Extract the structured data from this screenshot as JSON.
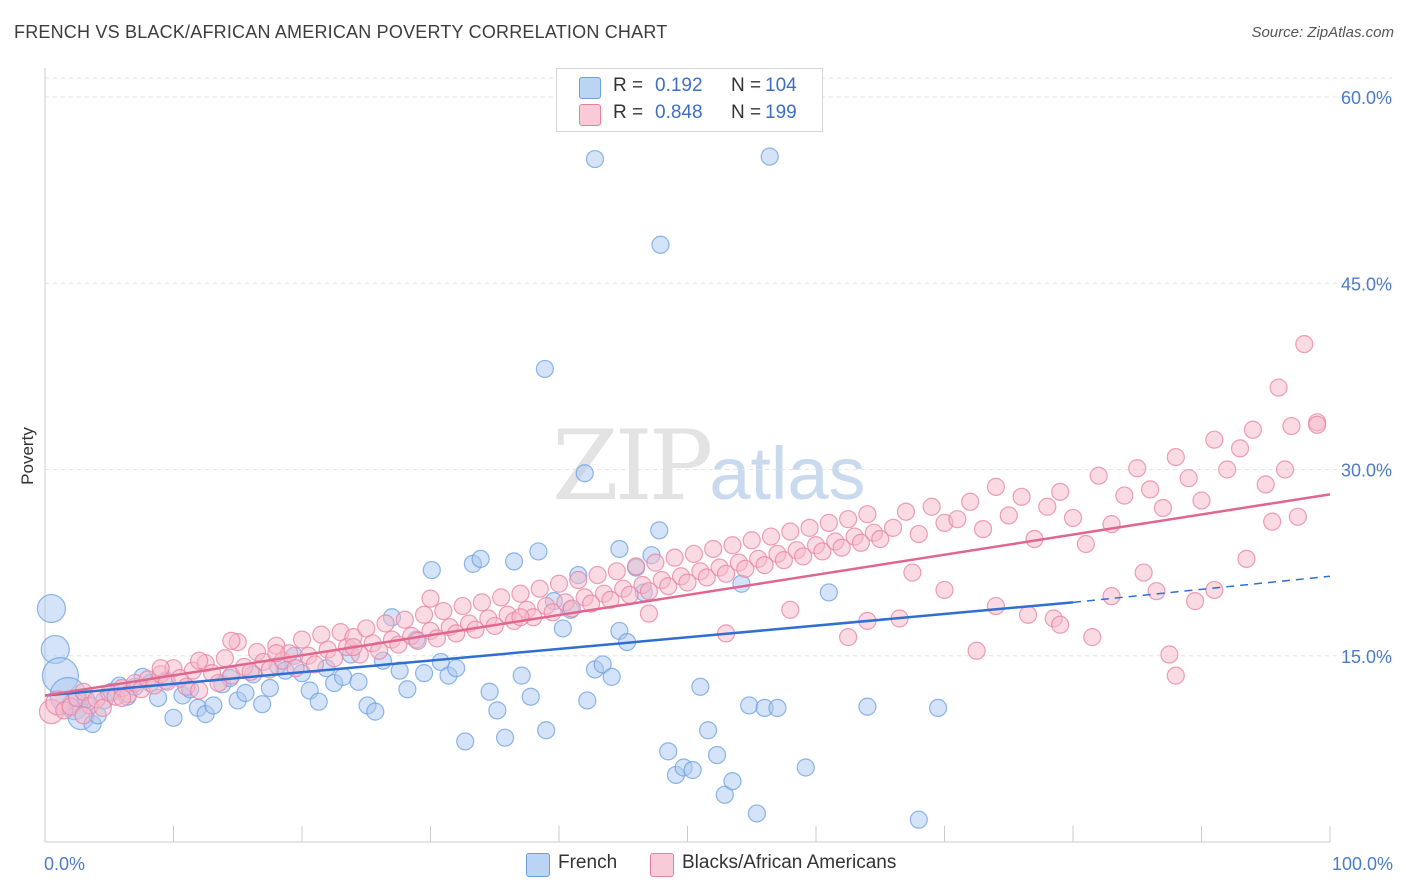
{
  "title": "FRENCH VS BLACK/AFRICAN AMERICAN POVERTY CORRELATION CHART",
  "source": "Source: ZipAtlas.com",
  "watermark": {
    "zip": "ZIP",
    "atlas": "atlas"
  },
  "legend": {
    "rows": [
      {
        "r_label": "R =",
        "r_value": "0.192",
        "n_label": "N =",
        "n_value": "104",
        "color": "#a9c8f0"
      },
      {
        "r_label": "R =",
        "r_value": "0.848",
        "n_label": "N =",
        "n_value": "199",
        "color": "#f6b8ca"
      }
    ]
  },
  "bottom_legend": [
    {
      "label": "French",
      "color": "#a9c8f0"
    },
    {
      "label": "Blacks/African Americans",
      "color": "#f6b8ca"
    }
  ],
  "chart_data": {
    "type": "scatter",
    "title": "FRENCH VS BLACK/AFRICAN AMERICAN POVERTY CORRELATION CHART",
    "xlabel": "",
    "ylabel": "Poverty",
    "xlim": [
      0,
      100
    ],
    "ylim": [
      0,
      60
    ],
    "x_tick_labels": [
      "0.0%",
      "100.0%"
    ],
    "y_ticks": [
      15,
      30,
      45,
      60
    ],
    "y_tick_labels": [
      "15.0%",
      "30.0%",
      "45.0%",
      "60.0%"
    ],
    "grid": true,
    "legend_position": "top-center",
    "series": [
      {
        "name": "French",
        "color": "#6a9fe0",
        "fill": "#a9c8f0",
        "trend": {
          "x": [
            0,
            80
          ],
          "y": [
            11.8,
            19.3
          ],
          "dashed_to": [
            100,
            21.4
          ]
        },
        "points": [
          [
            0.5,
            18.8
          ],
          [
            0.8,
            15.5
          ],
          [
            1.2,
            13.4
          ],
          [
            1.8,
            11.8
          ],
          [
            2.3,
            10.9
          ],
          [
            2.8,
            10.1
          ],
          [
            3.2,
            11.5
          ],
          [
            3.7,
            9.5
          ],
          [
            4.1,
            10.2
          ],
          [
            4.6,
            11.4
          ],
          [
            5.2,
            12.1
          ],
          [
            5.8,
            12.6
          ],
          [
            6.4,
            11.7
          ],
          [
            7.0,
            12.5
          ],
          [
            7.6,
            13.3
          ],
          [
            8.2,
            12.8
          ],
          [
            8.8,
            11.6
          ],
          [
            9.4,
            13.0
          ],
          [
            10.0,
            10.0
          ],
          [
            10.7,
            11.8
          ],
          [
            11.3,
            12.3
          ],
          [
            11.9,
            10.8
          ],
          [
            12.5,
            10.3
          ],
          [
            13.1,
            11.0
          ],
          [
            13.8,
            12.7
          ],
          [
            14.4,
            13.2
          ],
          [
            15.0,
            11.4
          ],
          [
            15.6,
            12.0
          ],
          [
            16.2,
            13.5
          ],
          [
            16.9,
            11.1
          ],
          [
            17.5,
            12.4
          ],
          [
            18.1,
            14.2
          ],
          [
            18.7,
            13.8
          ],
          [
            19.4,
            15.0
          ],
          [
            20.0,
            13.6
          ],
          [
            20.6,
            12.2
          ],
          [
            21.3,
            11.3
          ],
          [
            21.9,
            14.0
          ],
          [
            22.5,
            12.8
          ],
          [
            23.2,
            13.3
          ],
          [
            23.8,
            15.1
          ],
          [
            24.4,
            12.9
          ],
          [
            25.1,
            11.0
          ],
          [
            25.7,
            10.5
          ],
          [
            26.3,
            14.6
          ],
          [
            27.0,
            18.1
          ],
          [
            27.6,
            13.8
          ],
          [
            28.2,
            12.3
          ],
          [
            28.9,
            16.3
          ],
          [
            29.5,
            13.6
          ],
          [
            30.1,
            21.9
          ],
          [
            30.8,
            14.5
          ],
          [
            31.4,
            13.4
          ],
          [
            32.0,
            14.0
          ],
          [
            32.7,
            8.1
          ],
          [
            33.3,
            22.4
          ],
          [
            33.9,
            22.8
          ],
          [
            34.6,
            12.1
          ],
          [
            35.2,
            10.6
          ],
          [
            35.8,
            8.4
          ],
          [
            36.5,
            22.6
          ],
          [
            37.1,
            13.4
          ],
          [
            37.8,
            11.7
          ],
          [
            38.4,
            23.4
          ],
          [
            39.0,
            9.0
          ],
          [
            39.6,
            19.4
          ],
          [
            40.3,
            17.2
          ],
          [
            40.9,
            18.7
          ],
          [
            41.5,
            21.5
          ],
          [
            42.2,
            11.4
          ],
          [
            42.8,
            13.9
          ],
          [
            43.4,
            14.3
          ],
          [
            44.1,
            13.3
          ],
          [
            44.7,
            17.0
          ],
          [
            45.3,
            16.1
          ],
          [
            46.0,
            22.1
          ],
          [
            46.6,
            20.1
          ],
          [
            47.2,
            23.1
          ],
          [
            47.8,
            25.1
          ],
          [
            48.5,
            7.3
          ],
          [
            49.1,
            5.4
          ],
          [
            49.7,
            6.0
          ],
          [
            50.4,
            5.8
          ],
          [
            51.0,
            12.5
          ],
          [
            51.6,
            9.0
          ],
          [
            52.3,
            7.0
          ],
          [
            52.9,
            3.8
          ],
          [
            53.5,
            4.9
          ],
          [
            54.2,
            20.8
          ],
          [
            54.8,
            11.0
          ],
          [
            55.4,
            2.3
          ],
          [
            56.0,
            10.8
          ],
          [
            57.0,
            10.8
          ],
          [
            59.2,
            6.0
          ],
          [
            61.0,
            20.1
          ],
          [
            64.0,
            10.9
          ],
          [
            68.0,
            1.8
          ],
          [
            69.5,
            10.8
          ],
          [
            38.9,
            38.1
          ],
          [
            42.8,
            55.0
          ],
          [
            56.4,
            55.2
          ],
          [
            47.9,
            48.1
          ],
          [
            42.0,
            29.7
          ],
          [
            44.7,
            23.6
          ]
        ]
      },
      {
        "name": "Blacks/African Americans",
        "color": "#e87fa0",
        "fill": "#f6b8ca",
        "trend": {
          "x": [
            0,
            100
          ],
          "y": [
            11.8,
            28.0
          ]
        },
        "points": [
          [
            0.5,
            10.5
          ],
          [
            1.0,
            11.2
          ],
          [
            1.5,
            10.6
          ],
          [
            2.0,
            10.9
          ],
          [
            2.5,
            11.6
          ],
          [
            3.0,
            12.1
          ],
          [
            3.5,
            11.0
          ],
          [
            4.0,
            11.5
          ],
          [
            4.5,
            10.8
          ],
          [
            5.0,
            12.0
          ],
          [
            5.5,
            11.7
          ],
          [
            6.0,
            12.4
          ],
          [
            6.5,
            11.9
          ],
          [
            7.0,
            12.8
          ],
          [
            7.5,
            12.3
          ],
          [
            8.0,
            13.1
          ],
          [
            8.5,
            12.6
          ],
          [
            9.0,
            13.5
          ],
          [
            9.5,
            12.9
          ],
          [
            10.0,
            14.0
          ],
          [
            10.5,
            13.2
          ],
          [
            11.0,
            12.5
          ],
          [
            11.5,
            13.8
          ],
          [
            12.0,
            12.2
          ],
          [
            12.5,
            14.4
          ],
          [
            13.0,
            13.6
          ],
          [
            13.5,
            12.8
          ],
          [
            14.0,
            14.8
          ],
          [
            14.5,
            13.4
          ],
          [
            15.0,
            16.1
          ],
          [
            15.5,
            14.1
          ],
          [
            16.0,
            13.7
          ],
          [
            16.5,
            15.3
          ],
          [
            17.0,
            14.5
          ],
          [
            17.5,
            13.9
          ],
          [
            18.0,
            15.8
          ],
          [
            18.5,
            14.6
          ],
          [
            19.0,
            15.2
          ],
          [
            19.5,
            14.0
          ],
          [
            20.0,
            16.3
          ],
          [
            20.5,
            15.0
          ],
          [
            21.0,
            14.3
          ],
          [
            21.5,
            16.7
          ],
          [
            22.0,
            15.5
          ],
          [
            22.5,
            14.8
          ],
          [
            23.0,
            16.9
          ],
          [
            23.5,
            15.7
          ],
          [
            24.0,
            16.5
          ],
          [
            24.5,
            15.1
          ],
          [
            25.0,
            17.2
          ],
          [
            25.5,
            16.0
          ],
          [
            26.0,
            15.4
          ],
          [
            26.5,
            17.6
          ],
          [
            27.0,
            16.3
          ],
          [
            27.5,
            15.9
          ],
          [
            28.0,
            17.9
          ],
          [
            28.5,
            16.6
          ],
          [
            29.0,
            16.2
          ],
          [
            29.5,
            18.3
          ],
          [
            30.0,
            17.0
          ],
          [
            30.5,
            16.4
          ],
          [
            31.0,
            18.6
          ],
          [
            31.5,
            17.3
          ],
          [
            32.0,
            16.8
          ],
          [
            32.5,
            19.0
          ],
          [
            33.0,
            17.6
          ],
          [
            33.5,
            17.1
          ],
          [
            34.0,
            19.3
          ],
          [
            34.5,
            18.0
          ],
          [
            35.0,
            17.4
          ],
          [
            35.5,
            19.7
          ],
          [
            36.0,
            18.3
          ],
          [
            36.5,
            17.8
          ],
          [
            37.0,
            20.0
          ],
          [
            37.5,
            18.7
          ],
          [
            38.0,
            18.1
          ],
          [
            38.5,
            20.4
          ],
          [
            39.0,
            19.0
          ],
          [
            39.5,
            18.5
          ],
          [
            40.0,
            20.8
          ],
          [
            40.5,
            19.3
          ],
          [
            41.0,
            18.8
          ],
          [
            41.5,
            21.1
          ],
          [
            42.0,
            19.7
          ],
          [
            42.5,
            19.2
          ],
          [
            43.0,
            21.5
          ],
          [
            43.5,
            20.0
          ],
          [
            44.0,
            19.5
          ],
          [
            44.5,
            21.8
          ],
          [
            45.0,
            20.4
          ],
          [
            45.5,
            19.9
          ],
          [
            46.0,
            22.2
          ],
          [
            46.5,
            20.7
          ],
          [
            47.0,
            20.2
          ],
          [
            47.5,
            22.5
          ],
          [
            48.0,
            21.1
          ],
          [
            48.5,
            20.6
          ],
          [
            49.0,
            22.9
          ],
          [
            49.5,
            21.4
          ],
          [
            50.0,
            20.9
          ],
          [
            50.5,
            23.2
          ],
          [
            51.0,
            21.8
          ],
          [
            51.5,
            21.3
          ],
          [
            52.0,
            23.6
          ],
          [
            52.5,
            22.1
          ],
          [
            53.0,
            21.6
          ],
          [
            53.5,
            23.9
          ],
          [
            54.0,
            22.5
          ],
          [
            54.5,
            22.0
          ],
          [
            55.0,
            24.3
          ],
          [
            55.5,
            22.8
          ],
          [
            56.0,
            22.3
          ],
          [
            56.5,
            24.6
          ],
          [
            57.0,
            23.2
          ],
          [
            57.5,
            22.7
          ],
          [
            58.0,
            25.0
          ],
          [
            58.5,
            23.5
          ],
          [
            59.0,
            23.0
          ],
          [
            59.5,
            25.3
          ],
          [
            60.0,
            23.9
          ],
          [
            60.5,
            23.4
          ],
          [
            61.0,
            25.7
          ],
          [
            61.5,
            24.2
          ],
          [
            62.0,
            23.7
          ],
          [
            62.5,
            26.0
          ],
          [
            63.0,
            24.6
          ],
          [
            63.5,
            24.1
          ],
          [
            64.0,
            26.4
          ],
          [
            64.5,
            24.9
          ],
          [
            65.0,
            24.4
          ],
          [
            66.0,
            25.3
          ],
          [
            67.0,
            26.6
          ],
          [
            68.0,
            24.8
          ],
          [
            69.0,
            27.0
          ],
          [
            70.0,
            25.7
          ],
          [
            71.0,
            26.0
          ],
          [
            72.0,
            27.4
          ],
          [
            73.0,
            25.2
          ],
          [
            74.0,
            28.6
          ],
          [
            75.0,
            26.3
          ],
          [
            76.0,
            27.8
          ],
          [
            77.0,
            24.4
          ],
          [
            78.0,
            27.0
          ],
          [
            79.0,
            28.2
          ],
          [
            80.0,
            26.1
          ],
          [
            81.0,
            24.0
          ],
          [
            82.0,
            29.5
          ],
          [
            83.0,
            25.6
          ],
          [
            84.0,
            27.9
          ],
          [
            85.0,
            30.1
          ],
          [
            86.0,
            28.4
          ],
          [
            87.0,
            26.9
          ],
          [
            88.0,
            31.0
          ],
          [
            89.0,
            29.3
          ],
          [
            90.0,
            27.5
          ],
          [
            91.0,
            32.4
          ],
          [
            92.0,
            30.0
          ],
          [
            93.0,
            31.7
          ],
          [
            94.0,
            33.2
          ],
          [
            95.0,
            28.8
          ],
          [
            96.0,
            36.6
          ],
          [
            97.0,
            33.5
          ],
          [
            98.0,
            40.1
          ],
          [
            99.0,
            33.8
          ],
          [
            67.5,
            21.7
          ],
          [
            72.5,
            15.4
          ],
          [
            78.5,
            18.0
          ],
          [
            81.5,
            16.5
          ],
          [
            85.5,
            21.7
          ],
          [
            86.5,
            20.2
          ],
          [
            89.5,
            19.4
          ],
          [
            87.5,
            15.1
          ],
          [
            88.0,
            13.4
          ],
          [
            47.0,
            18.4
          ],
          [
            53.0,
            16.8
          ],
          [
            58.0,
            18.7
          ],
          [
            62.5,
            16.5
          ],
          [
            64.0,
            17.8
          ],
          [
            66.5,
            18.0
          ],
          [
            70.0,
            20.3
          ],
          [
            74.0,
            19.0
          ],
          [
            76.5,
            18.3
          ],
          [
            79.0,
            17.5
          ],
          [
            83.0,
            19.8
          ],
          [
            91.0,
            20.3
          ],
          [
            93.5,
            22.8
          ],
          [
            95.5,
            25.8
          ],
          [
            96.5,
            30.0
          ],
          [
            97.5,
            26.2
          ],
          [
            99.0,
            33.6
          ],
          [
            37.0,
            18.1
          ],
          [
            30.0,
            19.6
          ],
          [
            24.0,
            15.7
          ],
          [
            18.0,
            15.2
          ],
          [
            14.5,
            16.2
          ],
          [
            12.0,
            14.6
          ],
          [
            9.0,
            14.0
          ],
          [
            6.0,
            11.6
          ],
          [
            3.0,
            10.2
          ]
        ]
      }
    ]
  }
}
